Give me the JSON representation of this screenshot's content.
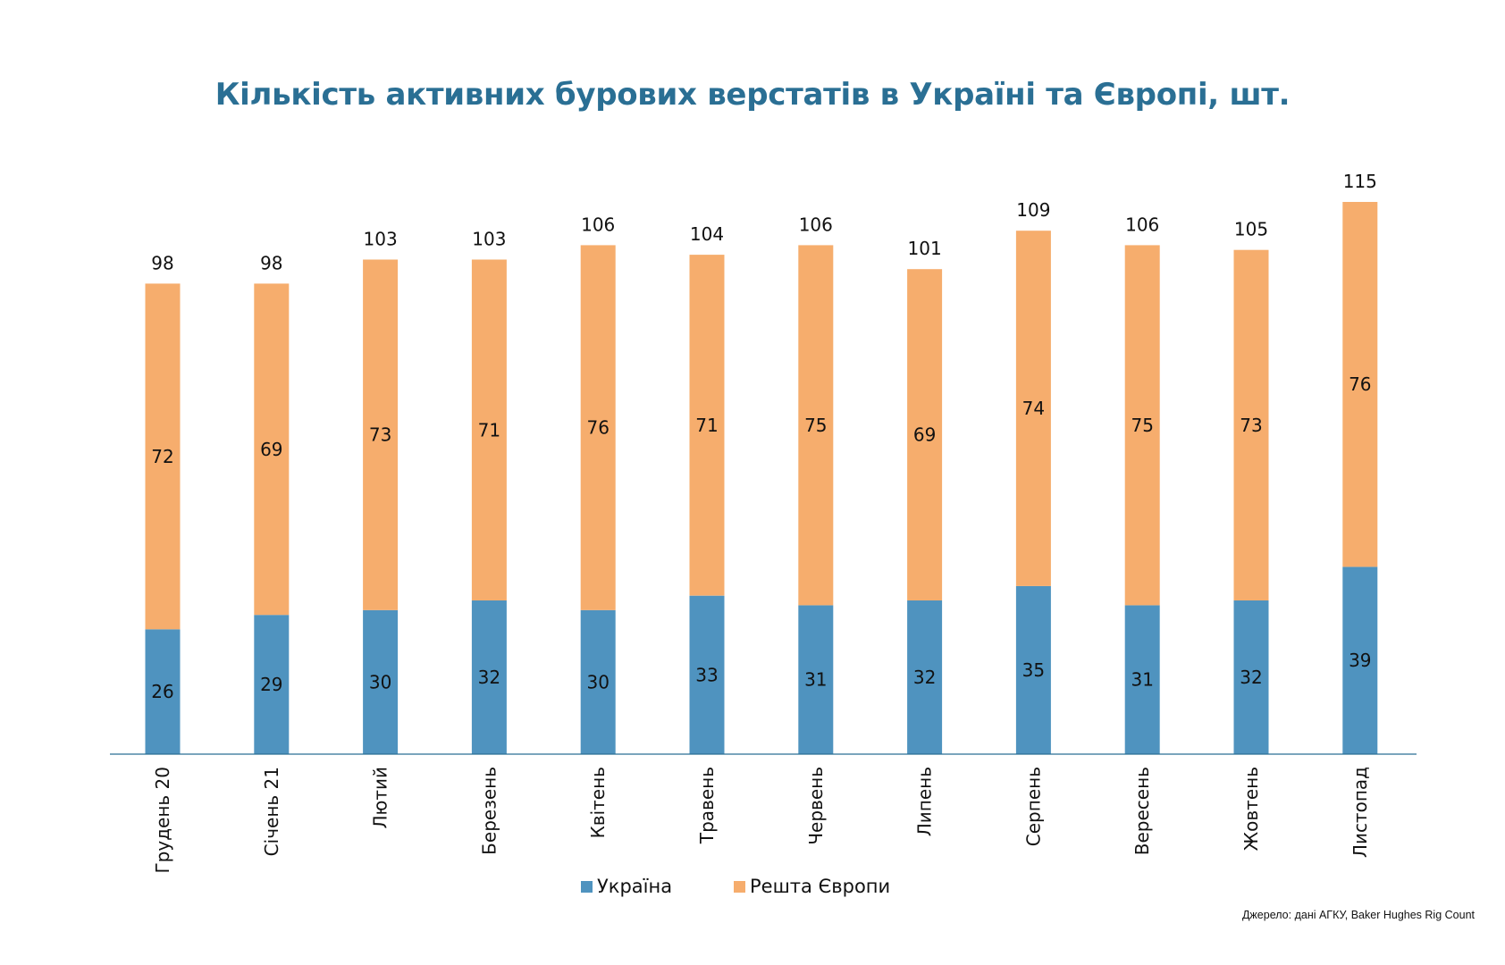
{
  "chart_data": {
    "type": "bar",
    "stacked": true,
    "title": "Кількість активних бурових верстатів в Україні та Європі, шт.",
    "categories": [
      "Грудень 20",
      "Січень 21",
      "Лютий",
      "Березень",
      "Квітень",
      "Травень",
      "Червень",
      "Липень",
      "Серпень",
      "Вересень",
      "Жовтень",
      "Листопад"
    ],
    "series": [
      {
        "name": "Україна",
        "color": "#4f93bf",
        "values": [
          26,
          29,
          30,
          32,
          30,
          33,
          31,
          32,
          35,
          31,
          32,
          39
        ]
      },
      {
        "name": "Решта Європи",
        "color": "#f6ad6d",
        "values": [
          72,
          69,
          73,
          71,
          76,
          71,
          75,
          69,
          74,
          75,
          73,
          76
        ]
      }
    ],
    "totals": [
      98,
      98,
      103,
      103,
      106,
      104,
      106,
      101,
      109,
      106,
      105,
      115
    ],
    "xlabel": "",
    "ylabel": "",
    "ylim": [
      0,
      115
    ],
    "grid": false,
    "legend": "bottom-center",
    "source": "Джерело: дані АГКУ, Baker Hughes Rig Count"
  }
}
